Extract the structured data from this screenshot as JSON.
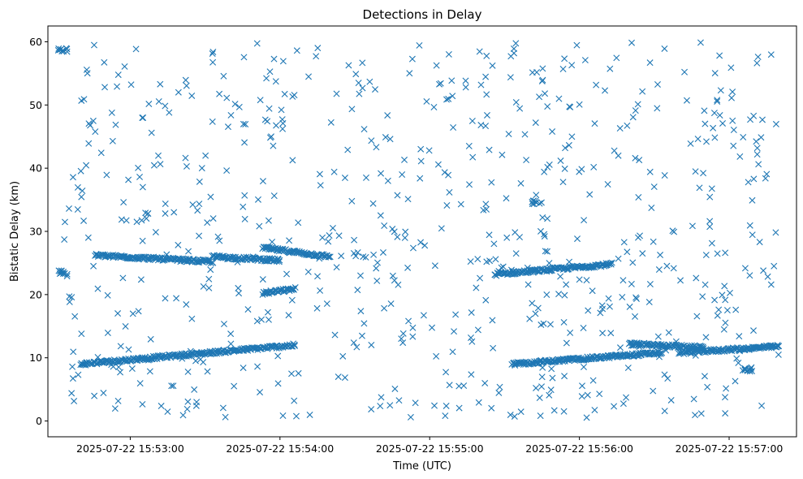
{
  "chart_data": {
    "type": "scatter",
    "title": "Detections in Delay",
    "xlabel": "Time (UTC)",
    "ylabel": "Bistatic Delay (km)",
    "marker": "x",
    "color": "#1f77b4",
    "grid": false,
    "legend": "none",
    "x_tick_labels": [
      "2025-07-22 15:53:00",
      "2025-07-22 15:54:00",
      "2025-07-22 15:55:00",
      "2025-07-22 15:56:00",
      "2025-07-22 15:57:00"
    ],
    "y_ticks": [
      0,
      10,
      20,
      30,
      40,
      50,
      60
    ],
    "xlim": [
      "2025-07-22 15:52:27",
      "2025-07-22 15:57:27"
    ],
    "ylim": [
      -2.5,
      62.5
    ],
    "tracks": [
      {
        "t_start": "2025-07-22 15:52:40",
        "t_end": "2025-07-22 15:54:06",
        "y_start": 9.0,
        "y_end": 12.0
      },
      {
        "t_start": "2025-07-22 15:52:46",
        "t_end": "2025-07-22 15:53:33",
        "y_start": 26.2,
        "y_end": 25.2
      },
      {
        "t_start": "2025-07-22 15:53:33",
        "t_end": "2025-07-22 15:54:00",
        "y_start": 26.0,
        "y_end": 25.4
      },
      {
        "t_start": "2025-07-22 15:53:53",
        "t_end": "2025-07-22 15:54:20",
        "y_start": 27.4,
        "y_end": 26.0
      },
      {
        "t_start": "2025-07-22 15:53:53",
        "t_end": "2025-07-22 15:54:06",
        "y_start": 20.2,
        "y_end": 20.9
      },
      {
        "t_start": "2025-07-22 15:55:26",
        "t_end": "2025-07-22 15:56:13",
        "y_start": 23.2,
        "y_end": 24.8
      },
      {
        "t_start": "2025-07-22 15:55:33",
        "t_end": "2025-07-22 15:56:33",
        "y_start": 9.0,
        "y_end": 10.8
      },
      {
        "t_start": "2025-07-22 15:56:20",
        "t_end": "2025-07-22 15:56:50",
        "y_start": 12.2,
        "y_end": 11.6
      },
      {
        "t_start": "2025-07-22 15:56:40",
        "t_end": "2025-07-22 15:57:20",
        "y_start": 10.8,
        "y_end": 11.8
      }
    ],
    "clusters": [
      {
        "t": "2025-07-22 15:55:43",
        "y": 34.6
      },
      {
        "t": "2025-07-22 15:52:33",
        "y": 23.5
      },
      {
        "t": "2025-07-22 15:52:33",
        "y": 58.7
      },
      {
        "t": "2025-07-22 15:57:07",
        "y": 8.2
      }
    ],
    "scattered_points_approx": 700
  }
}
